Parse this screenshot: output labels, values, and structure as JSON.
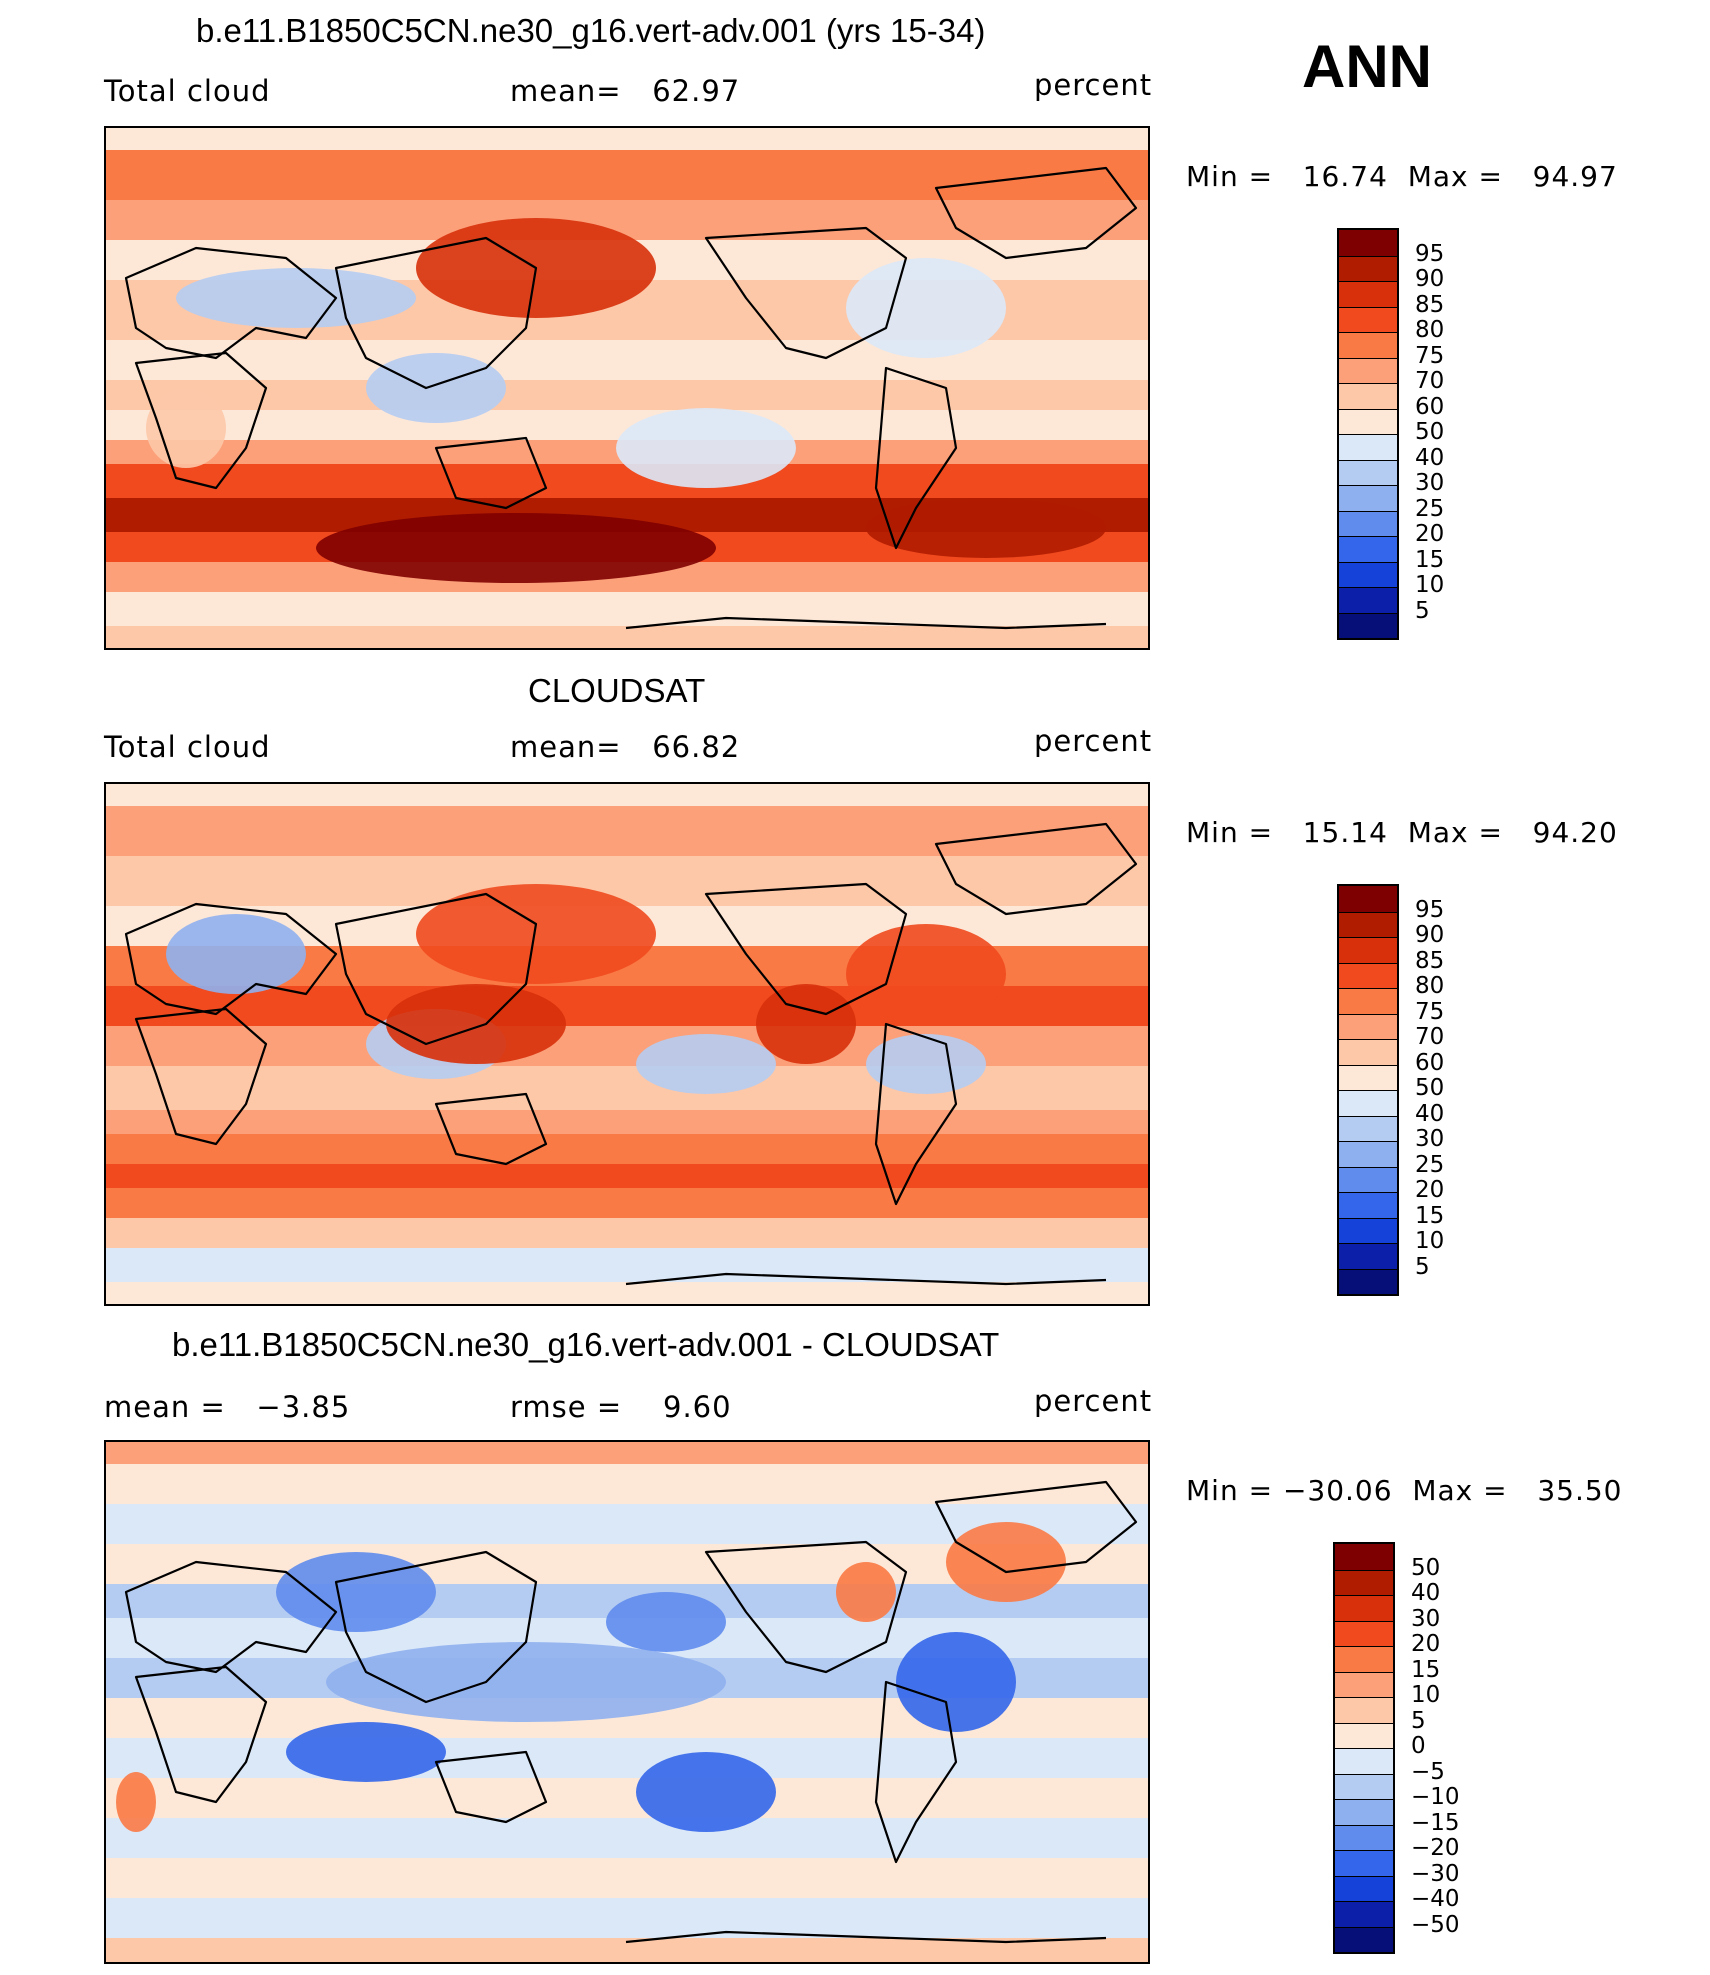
{
  "season": "ANN",
  "panels": [
    {
      "title": "b.e11.B1850C5CN.ne30_g16.vert-adv.001 (yrs 15-34)",
      "left_text": "Total cloud",
      "center_text": "mean=   62.97",
      "right_text": "percent",
      "minmax": "Min =   16.74  Max =   94.97",
      "colorbar_labels": [
        "95",
        "90",
        "85",
        "80",
        "75",
        "70",
        "60",
        "50",
        "40",
        "30",
        "25",
        "20",
        "15",
        "10",
        "5"
      ]
    },
    {
      "title": "CLOUDSAT",
      "left_text": "Total cloud",
      "center_text": "mean=   66.82",
      "right_text": "percent",
      "minmax": "Min =   15.14  Max =   94.20",
      "colorbar_labels": [
        "95",
        "90",
        "85",
        "80",
        "75",
        "70",
        "60",
        "50",
        "40",
        "30",
        "25",
        "20",
        "15",
        "10",
        "5"
      ]
    },
    {
      "title": "b.e11.B1850C5CN.ne30_g16.vert-adv.001 - CLOUDSAT",
      "left_text": "mean =   −3.85",
      "center_text": "rmse =    9.60",
      "right_text": "percent",
      "minmax": "Min = −30.06  Max =   35.50",
      "colorbar_labels": [
        "50",
        "40",
        "30",
        "20",
        "15",
        "10",
        "5",
        "0",
        "−5",
        "−10",
        "−15",
        "−20",
        "−30",
        "−40",
        "−50"
      ]
    }
  ],
  "colors": {
    "palette": [
      "#7f0000",
      "#b01c00",
      "#d7300a",
      "#f04a1e",
      "#fa7a45",
      "#fca079",
      "#fdc8a8",
      "#fde8d8",
      "#dbe8f8",
      "#b5ccf2",
      "#8fb0ee",
      "#5f8ced",
      "#3366ea",
      "#1542d8",
      "#0b1fa8",
      "#060e78"
    ]
  }
}
